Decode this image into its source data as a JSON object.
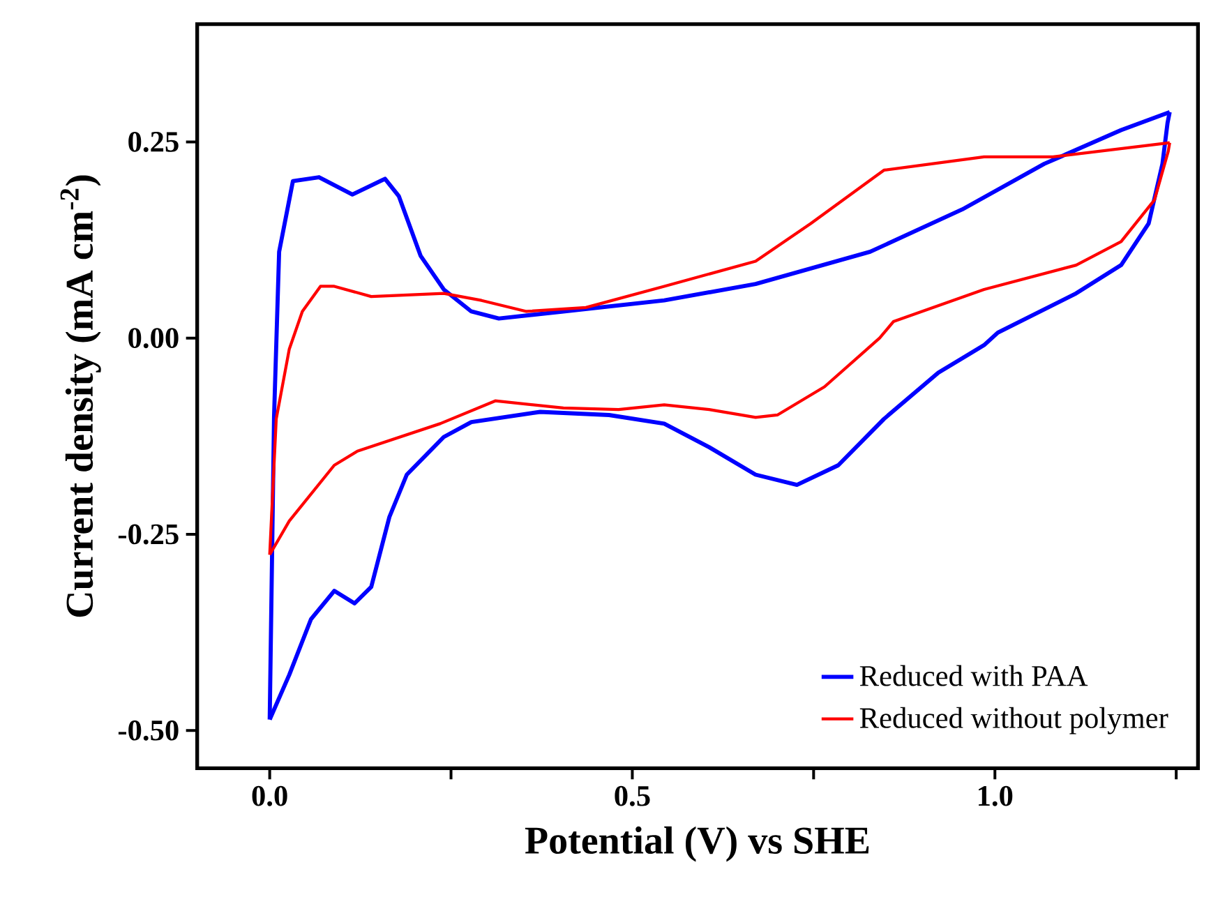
{
  "chart_data": {
    "type": "line",
    "xlabel": "Potential (V) vs SHE",
    "ylabel": "Current density (mA cm$^{-2}$)",
    "xlim": [
      -0.1,
      1.28
    ],
    "ylim": [
      -0.548,
      0.4
    ],
    "xticks": [
      {
        "value": 0,
        "label": "0.0"
      },
      {
        "value": 0.25,
        "label": null
      },
      {
        "value": 0.5,
        "label": "0.5"
      },
      {
        "value": 0.75,
        "label": null
      },
      {
        "value": 1,
        "label": "1.0"
      },
      {
        "value": 1.25,
        "label": null
      }
    ],
    "yticks": [
      {
        "value": -0.5,
        "label": "-0.50"
      },
      {
        "value": -0.25,
        "label": "-0.25"
      },
      {
        "value": 0,
        "label": "0.00"
      },
      {
        "value": 0.25,
        "label": "0.25"
      }
    ],
    "legend": "bottom right",
    "grid": false,
    "series": [
      {
        "name": "Reduced with PAA",
        "color": "#0000ff",
        "x": [
          0,
          0.006,
          0.013,
          0.032,
          0.068,
          0.114,
          0.159,
          0.178,
          0.208,
          0.24,
          0.278,
          0.316,
          0.405,
          0.544,
          0.67,
          0.828,
          0.955,
          1.068,
          1.174,
          1.241
        ],
        "values": [
          -0.486,
          -0.1,
          0.11,
          0.2,
          0.205,
          0.183,
          0.203,
          0.181,
          0.105,
          0.062,
          0.034,
          0.025,
          0.034,
          0.048,
          0.069,
          0.11,
          0.164,
          0.222,
          0.265,
          0.288
        ]
      },
      {
        "color": "#0000ff",
        "x": [
          1.241,
          1.238,
          1.231,
          1.212,
          1.174,
          1.112,
          1.004,
          0.985,
          0.922,
          0.847,
          0.784,
          0.727,
          0.67,
          0.606,
          0.544,
          0.468,
          0.373,
          0.278,
          0.24,
          0.189,
          0.165,
          0.14,
          0.117,
          0.089,
          0.057,
          0.027,
          0
        ],
        "values": [
          0.288,
          0.274,
          0.222,
          0.146,
          0.093,
          0.057,
          0.007,
          -0.009,
          -0.044,
          -0.103,
          -0.162,
          -0.187,
          -0.174,
          -0.139,
          -0.109,
          -0.098,
          -0.094,
          -0.107,
          -0.126,
          -0.174,
          -0.228,
          -0.317,
          -0.338,
          -0.322,
          -0.358,
          -0.429,
          -0.486
        ]
      },
      {
        "name": "Reduced without polymer",
        "color": "#ff0000",
        "x": [
          0,
          0.009,
          0.027,
          0.045,
          0.07,
          0.089,
          0.14,
          0.24,
          0.292,
          0.354,
          0.436,
          0.544,
          0.67,
          0.746,
          0.847,
          0.985,
          1.08,
          1.241
        ],
        "values": [
          -0.276,
          -0.103,
          -0.014,
          0.034,
          0.066,
          0.066,
          0.053,
          0.057,
          0.048,
          0.034,
          0.039,
          0.066,
          0.098,
          0.146,
          0.214,
          0.231,
          0.231,
          0.249
        ]
      },
      {
        "color": "#ff0000",
        "x": [
          1.241,
          1.239,
          1.22,
          1.174,
          1.112,
          0.985,
          0.86,
          0.841,
          0.765,
          0.7,
          0.67,
          0.606,
          0.544,
          0.481,
          0.405,
          0.311,
          0.235,
          0.121,
          0.089,
          0.027,
          0
        ],
        "values": [
          0.249,
          0.238,
          0.176,
          0.123,
          0.093,
          0.062,
          0.021,
          0,
          -0.062,
          -0.098,
          -0.101,
          -0.091,
          -0.085,
          -0.091,
          -0.089,
          -0.08,
          -0.109,
          -0.144,
          -0.162,
          -0.233,
          -0.276
        ]
      }
    ]
  }
}
